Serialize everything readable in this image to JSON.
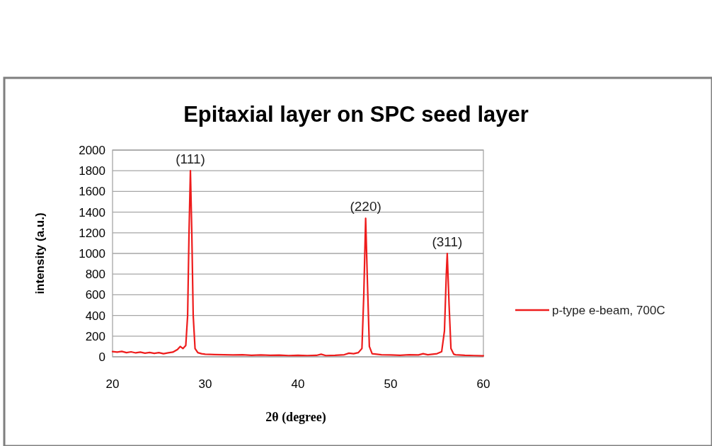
{
  "chart_data": {
    "type": "line",
    "title": "Epitaxial layer on SPC seed layer",
    "xlabel": "2θ (degree)",
    "ylabel": "intensity (a.u.)",
    "xlim": [
      20,
      60
    ],
    "xticks": [
      20,
      30,
      40,
      50,
      60
    ],
    "ylim": [
      0,
      2000
    ],
    "yticks": [
      0,
      200,
      400,
      600,
      800,
      1000,
      1200,
      1400,
      1600,
      1800,
      2000
    ],
    "grid": "y",
    "legend": "right",
    "marker": "none",
    "line_style": "solid",
    "annotations": [
      {
        "text": "(111)",
        "x": 28.4,
        "y": 1800
      },
      {
        "text": "(220)",
        "x": 47.3,
        "y": 1340
      },
      {
        "text": "(311)",
        "x": 56.1,
        "y": 1000
      }
    ],
    "series": [
      {
        "name": "p-type e-beam, 700C",
        "color": "#ee1c1c",
        "x": [
          20,
          20.5,
          21,
          21.5,
          22,
          22.5,
          23,
          23.5,
          24,
          24.5,
          25,
          25.5,
          26,
          26.5,
          27,
          27.3,
          27.6,
          27.9,
          28.1,
          28.25,
          28.4,
          28.55,
          28.7,
          28.9,
          29.2,
          29.6,
          30,
          31,
          32,
          33,
          34,
          35,
          36,
          37,
          38,
          39,
          40,
          41,
          42,
          42.5,
          43,
          44,
          45,
          45.5,
          46,
          46.5,
          46.9,
          47.1,
          47.3,
          47.5,
          47.7,
          48,
          49,
          50,
          51,
          52,
          53,
          53.5,
          54,
          55,
          55.5,
          55.8,
          56,
          56.1,
          56.3,
          56.5,
          56.8,
          57,
          58,
          59,
          60
        ],
        "values": [
          50,
          45,
          52,
          40,
          48,
          38,
          45,
          35,
          42,
          33,
          40,
          30,
          38,
          45,
          70,
          100,
          80,
          110,
          400,
          1200,
          1800,
          1200,
          400,
          80,
          40,
          30,
          25,
          22,
          20,
          18,
          20,
          15,
          18,
          14,
          16,
          12,
          15,
          12,
          14,
          25,
          12,
          15,
          20,
          35,
          30,
          40,
          80,
          600,
          1340,
          700,
          100,
          30,
          20,
          18,
          15,
          20,
          18,
          30,
          20,
          30,
          50,
          250,
          800,
          1000,
          500,
          80,
          25,
          20,
          15,
          12,
          10
        ]
      }
    ]
  }
}
